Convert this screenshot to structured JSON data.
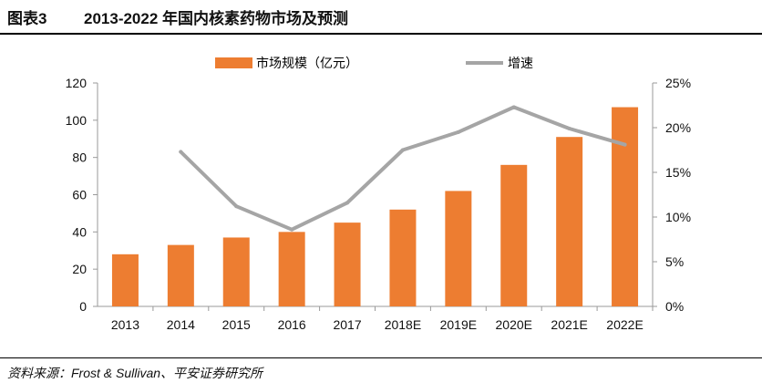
{
  "header": {
    "figure_label": "图表3",
    "title": "2013-2022 年国内核素药物市场及预测"
  },
  "footer": {
    "source": "资料来源：Frost & Sullivan、平安证券研究所"
  },
  "colors": {
    "bar": "#ED7D31",
    "line": "#A5A5A5",
    "axis": "#9a9a9a",
    "text": "#111111"
  },
  "chart_data": {
    "type": "bar",
    "categories": [
      "2013",
      "2014",
      "2015",
      "2016",
      "2017",
      "2018E",
      "2019E",
      "2020E",
      "2021E",
      "2022E"
    ],
    "series": [
      {
        "name": "市场规模（亿元）",
        "type": "bar",
        "axis": "left",
        "values": [
          28,
          33,
          37,
          40,
          45,
          52,
          62,
          76,
          91,
          107
        ]
      },
      {
        "name": "增速",
        "type": "line",
        "axis": "right",
        "values": [
          null,
          17.3,
          11.2,
          8.6,
          11.6,
          17.5,
          19.5,
          22.3,
          19.9,
          18.1
        ]
      }
    ],
    "y_left": {
      "min": 0,
      "max": 120,
      "ticks": [
        "0",
        "20",
        "40",
        "60",
        "80",
        "100",
        "120"
      ]
    },
    "y_right": {
      "min": 0,
      "max": 25,
      "ticks": [
        "0%",
        "5%",
        "10%",
        "15%",
        "20%",
        "25%"
      ]
    },
    "legend": [
      {
        "label": "市场规模（亿元）",
        "kind": "bar"
      },
      {
        "label": "增速",
        "kind": "line"
      }
    ],
    "legend_position": "top-center"
  }
}
